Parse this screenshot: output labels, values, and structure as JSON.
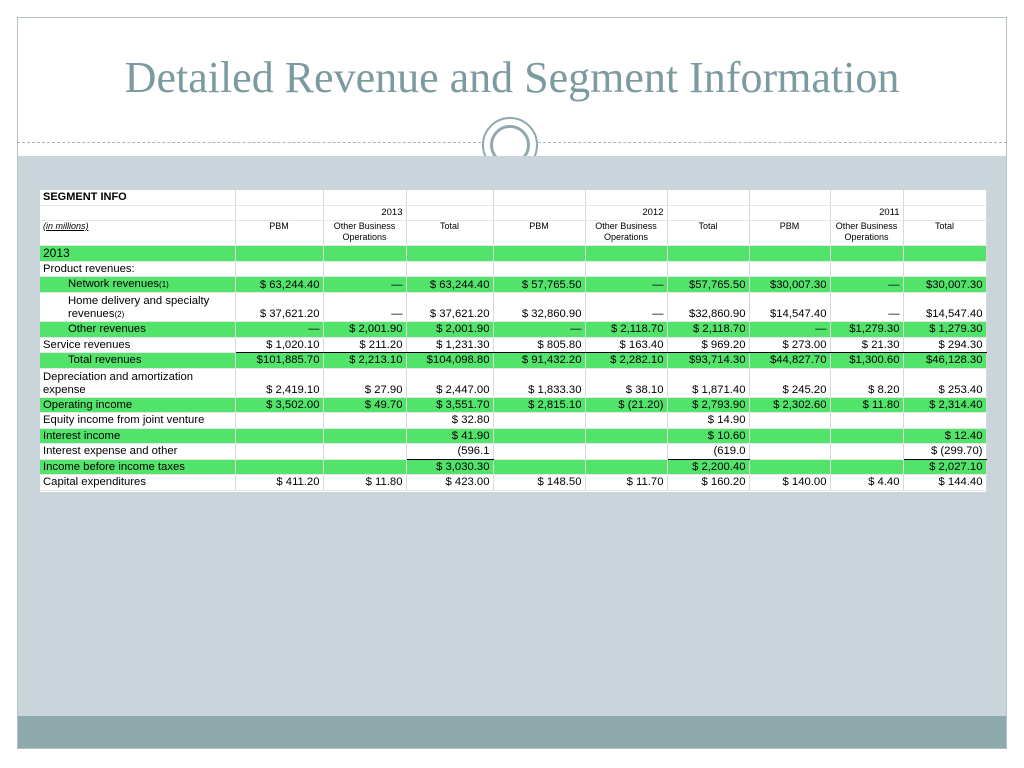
{
  "slide": {
    "title": "Detailed Revenue and Segment Information"
  },
  "table": {
    "caption": "SEGMENT INFO",
    "years": [
      "2013",
      "2012",
      "2011"
    ],
    "units_label": "(in millions)",
    "col_pbm": "PBM",
    "col_other_l1": "Other Business",
    "col_other_l2": "Operations",
    "col_total": "Total",
    "section_label": "2013",
    "product_revenues_label": "Product revenues:",
    "rows": [
      {
        "label": "Network revenues",
        "note": "(1)",
        "values": [
          "$ 63,244.40",
          "—",
          "$ 63,244.40",
          "$ 57,765.50",
          "—",
          "$57,765.50",
          "$30,007.30",
          "—",
          "$30,007.30"
        ]
      },
      {
        "label_l1": "Home delivery and specialty",
        "label_l2": "revenues",
        "note": "(2)",
        "values": [
          "$ 37,621.20",
          "—",
          "$ 37,621.20",
          "$ 32,860.90",
          "—",
          "$32,860.90",
          "$14,547.40",
          "—",
          "$14,547.40"
        ]
      },
      {
        "label": "Other revenues",
        "values": [
          "—",
          "$ 2,001.90",
          "$ 2,001.90",
          "—",
          "$ 2,118.70",
          "$ 2,118.70",
          "—",
          "$1,279.30",
          "$ 1,279.30"
        ]
      },
      {
        "label": "Service revenues",
        "values": [
          "$ 1,020.10",
          "$ 211.20",
          "$ 1,231.30",
          "$ 805.80",
          "$ 163.40",
          "$ 969.20",
          "$ 273.00",
          "$ 21.30",
          "$ 294.30"
        ]
      },
      {
        "label": "Total revenues",
        "values": [
          "$101,885.70",
          "$ 2,213.10",
          "$104,098.80",
          "$ 91,432.20",
          "$ 2,282.10",
          "$93,714.30",
          "$44,827.70",
          "$1,300.60",
          "$46,128.30"
        ]
      },
      {
        "label_l1": "Depreciation and amortization",
        "label_l2": "expense",
        "values": [
          "$ 2,419.10",
          "$ 27.90",
          "$ 2,447.00",
          "$ 1,833.30",
          "$ 38.10",
          "$ 1,871.40",
          "$ 245.20",
          "$ 8.20",
          "$ 253.40"
        ]
      },
      {
        "label": "Operating income",
        "values": [
          "$ 3,502.00",
          "$ 49.70",
          "$ 3,551.70",
          "$ 2,815.10",
          "$ (21.20)",
          "$ 2,793.90",
          "$ 2,302.60",
          "$ 11.80",
          "$ 2,314.40"
        ]
      },
      {
        "label": "Equity income from joint venture",
        "values": [
          "",
          "",
          "$ 32.80",
          "",
          "",
          "$ 14.90",
          "",
          "",
          ""
        ]
      },
      {
        "label": "Interest income",
        "values": [
          "",
          "",
          "$ 41.90",
          "",
          "",
          "$ 10.60",
          "",
          "",
          "$ 12.40"
        ]
      },
      {
        "label": "Interest expense and other",
        "values": [
          "",
          "",
          "(596.1",
          "",
          "",
          "(619.0",
          "",
          "",
          "$ (299.70)"
        ]
      },
      {
        "label": "Income before income taxes",
        "values": [
          "",
          "",
          "$ 3,030.30",
          "",
          "",
          "$ 2,200.40",
          "",
          "",
          "$ 2,027.10"
        ]
      },
      {
        "label": "Capital expenditures",
        "values": [
          "$ 411.20",
          "$ 11.80",
          "$ 423.00",
          "$ 148.50",
          "$ 11.70",
          "$ 160.20",
          "$ 140.00",
          "$ 4.40",
          "$ 144.40"
        ]
      }
    ]
  },
  "colors": {
    "title": "#7b9ba0",
    "highlight": "#52e36b",
    "band": "#c9d5da",
    "footer": "#8eaaad"
  }
}
